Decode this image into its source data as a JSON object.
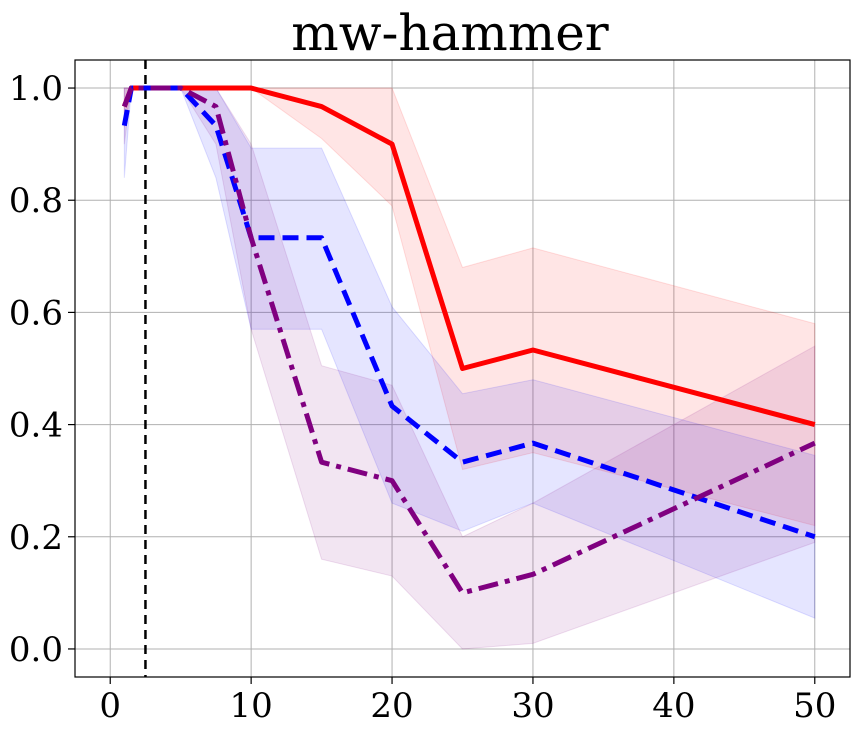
{
  "chart_data": {
    "type": "line",
    "title": "mw-hammer",
    "xlabel": "",
    "ylabel": "",
    "xlim": [
      -2.5,
      52.5
    ],
    "ylim": [
      -0.05,
      1.05
    ],
    "grid": true,
    "xticks": [
      0,
      10,
      20,
      30,
      40,
      50
    ],
    "yticks": [
      0.0,
      0.2,
      0.4,
      0.6,
      0.8,
      1.0
    ],
    "xtick_labels": [
      "0",
      "10",
      "20",
      "30",
      "40",
      "50"
    ],
    "ytick_labels": [
      "0.0",
      "0.2",
      "0.4",
      "0.6",
      "0.8",
      "1.0"
    ],
    "vline": {
      "x": 2.5,
      "style": "dashed",
      "color": "#000000"
    },
    "series": [
      {
        "color": "#ff0000",
        "dash": "solid",
        "x": [
          1,
          1.5,
          5,
          10,
          15,
          20,
          25,
          30,
          50
        ],
        "y": [
          0.967,
          1.0,
          1.0,
          1.0,
          0.967,
          0.9,
          0.5,
          0.533,
          0.4
        ],
        "lower": [
          0.93,
          1.0,
          1.0,
          1.0,
          0.91,
          0.79,
          0.32,
          0.35,
          0.22
        ],
        "upper": [
          1.0,
          1.0,
          1.0,
          1.0,
          1.0,
          1.0,
          0.68,
          0.715,
          0.58
        ]
      },
      {
        "color": "#0000ff",
        "dash": "dashed",
        "x": [
          1,
          1.5,
          5,
          7.5,
          10,
          15,
          20,
          25,
          30,
          50
        ],
        "y": [
          0.933,
          1.0,
          1.0,
          0.933,
          0.733,
          0.733,
          0.433,
          0.333,
          0.367,
          0.2
        ],
        "lower": [
          0.84,
          1.0,
          1.0,
          0.84,
          0.57,
          0.57,
          0.26,
          0.21,
          0.26,
          0.055
        ],
        "upper": [
          1.0,
          1.0,
          1.0,
          1.0,
          0.893,
          0.893,
          0.61,
          0.455,
          0.48,
          0.345
        ]
      },
      {
        "color": "#800080",
        "dash": "dashdot",
        "x": [
          1,
          1.5,
          5,
          7.5,
          10,
          15,
          20,
          25,
          30,
          50
        ],
        "y": [
          0.967,
          1.0,
          1.0,
          0.967,
          0.733,
          0.333,
          0.3,
          0.1,
          0.133,
          0.367
        ],
        "lower": [
          0.9,
          1.0,
          1.0,
          0.9,
          0.57,
          0.16,
          0.13,
          0.0,
          0.01,
          0.19
        ],
        "upper": [
          1.0,
          1.0,
          1.0,
          1.0,
          0.9,
          0.505,
          0.47,
          0.2,
          0.26,
          0.54
        ]
      }
    ]
  }
}
